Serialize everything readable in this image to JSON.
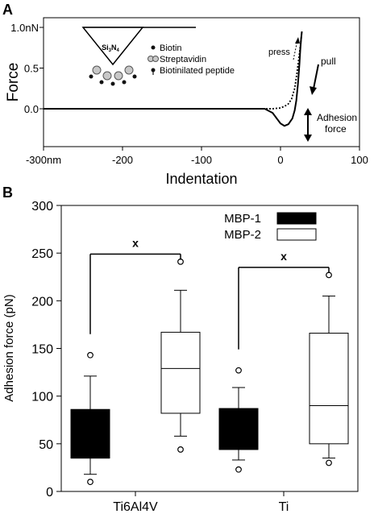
{
  "panels": {
    "a_letter": "A",
    "b_letter": "B"
  },
  "chart_data": [
    {
      "type": "line",
      "ylabel": "Force",
      "xlabel": "Indentation",
      "xlim": [
        -300,
        100
      ],
      "ylim": [
        -0.25,
        1.0
      ],
      "x_ticks": [
        {
          "value": -300,
          "label": "-300nm"
        },
        {
          "value": -200,
          "label": "-200"
        },
        {
          "value": -100,
          "label": "-100"
        },
        {
          "value": 0,
          "label": "0"
        },
        {
          "value": 100,
          "label": "100"
        }
      ],
      "y_ticks": [
        {
          "value": 1.0,
          "label": "1.0nN"
        },
        {
          "value": 0.5,
          "label": "0.5"
        },
        {
          "value": 0.0,
          "label": "0.0"
        }
      ],
      "series": [
        {
          "style": "solid",
          "x": [
            -300,
            -150,
            -50,
            -20,
            -10,
            0,
            5,
            10,
            15,
            18,
            20,
            22,
            24,
            25,
            26,
            27
          ],
          "y": [
            0.0,
            0.0,
            0.0,
            0.0,
            -0.05,
            -0.18,
            -0.21,
            -0.19,
            -0.12,
            -0.02,
            0.1,
            0.3,
            0.55,
            0.72,
            0.85,
            0.95
          ]
        },
        {
          "style": "dotted",
          "x": [
            -300,
            -150,
            -50,
            -20,
            -10,
            0,
            5,
            10,
            14,
            18,
            21,
            24,
            26,
            27
          ],
          "y": [
            0.0,
            0.0,
            0.0,
            0.0,
            0.0,
            0.01,
            0.03,
            0.06,
            0.12,
            0.25,
            0.45,
            0.68,
            0.85,
            0.95
          ]
        }
      ],
      "annotations": {
        "press": "press",
        "pull": "pull",
        "adhesion_line1": "Adhesion",
        "adhesion_line2": "force"
      },
      "inset": {
        "tip_label_main": "Si",
        "tip_label_sub1": "3",
        "tip_label_mid": "N",
        "tip_label_sub2": "4",
        "legend": [
          {
            "symbol": "dot",
            "label": "Biotin"
          },
          {
            "symbol": "streptavidin",
            "label": "Streptavidin"
          },
          {
            "symbol": "peptide",
            "label": "Biotinilated peptide"
          }
        ]
      }
    },
    {
      "type": "box",
      "ylabel": "Adhesion force (pN)",
      "ylim": [
        0,
        300
      ],
      "y_ticks": [
        0,
        50,
        100,
        150,
        200,
        250,
        300
      ],
      "categories": [
        "Ti6Al4V",
        "Ti"
      ],
      "series": [
        {
          "name": "MBP-1",
          "fill": "#000000"
        },
        {
          "name": "MBP-2",
          "fill": "#ffffff"
        }
      ],
      "boxes": [
        {
          "category": "Ti6Al4V",
          "series": "MBP-1",
          "whisker_low": 18,
          "q1": 35,
          "median": 35,
          "q3": 86,
          "whisker_high": 121,
          "outliers": [
            10,
            143
          ]
        },
        {
          "category": "Ti6Al4V",
          "series": "MBP-2",
          "whisker_low": 58,
          "q1": 82,
          "median": 129,
          "q3": 167,
          "whisker_high": 211,
          "outliers": [
            44,
            241
          ]
        },
        {
          "category": "Ti",
          "series": "MBP-1",
          "whisker_low": 33,
          "q1": 44,
          "median": 44,
          "q3": 87,
          "whisker_high": 109,
          "outliers": [
            23,
            127
          ]
        },
        {
          "category": "Ti",
          "series": "MBP-2",
          "whisker_low": 35,
          "q1": 50,
          "median": 90,
          "q3": 166,
          "whisker_high": 205,
          "outliers": [
            30,
            227
          ]
        }
      ],
      "significance": [
        {
          "category": "Ti6Al4V",
          "label": "x"
        },
        {
          "category": "Ti",
          "label": "x"
        }
      ]
    }
  ]
}
